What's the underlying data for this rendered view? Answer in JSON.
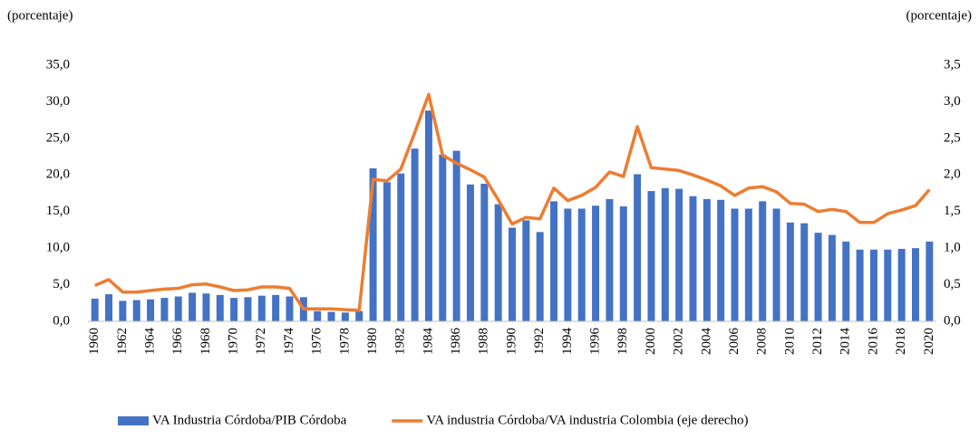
{
  "chart_data": {
    "type": "bar_line",
    "y_label": "(porcentaje)",
    "y2_label": "(porcentaje)",
    "categories": [
      "1960",
      null,
      "1962",
      null,
      "1964",
      null,
      "1966",
      null,
      "1968",
      null,
      "1970",
      null,
      "1972",
      null,
      "1974",
      null,
      "1976",
      null,
      "1978",
      null,
      "1980",
      null,
      "1982",
      null,
      "1984",
      null,
      "1986",
      null,
      "1988",
      null,
      "1990",
      null,
      "1992",
      null,
      "1994",
      null,
      "1996",
      null,
      "1998",
      null,
      "2000",
      null,
      "2002",
      null,
      "2004",
      null,
      "2006",
      null,
      "2008",
      null,
      "2010",
      null,
      "2012",
      null,
      "2014",
      null,
      "2016",
      null,
      "2018",
      null,
      "2020"
    ],
    "series": [
      {
        "name": "VA Industria Córdoba/PIB Córdoba",
        "type": "bar",
        "color": "#4472c4",
        "values": [
          3.1,
          3.7,
          2.8,
          2.9,
          3.0,
          3.2,
          3.4,
          3.9,
          3.8,
          3.6,
          3.2,
          3.3,
          3.5,
          3.6,
          3.4,
          3.3,
          1.4,
          1.3,
          1.2,
          1.4,
          20.9,
          19.0,
          20.2,
          23.6,
          28.8,
          22.8,
          23.3,
          18.7,
          18.8,
          16.0,
          12.8,
          13.8,
          12.2,
          16.4,
          15.4,
          15.4,
          15.8,
          16.7,
          15.7,
          20.1,
          17.8,
          18.2,
          18.1,
          17.1,
          16.7,
          16.6,
          15.4,
          15.4,
          16.4,
          15.4,
          13.5,
          13.4,
          12.1,
          11.8,
          10.9,
          9.8,
          9.8,
          9.8,
          9.9,
          10.0,
          10.9
        ]
      },
      {
        "name": "VA industria Córdoba/VA industria Colombia (eje derecho)",
        "type": "line",
        "axis": "y2",
        "color": "#ed7d31",
        "values": [
          0.49,
          0.57,
          0.4,
          0.4,
          0.42,
          0.44,
          0.45,
          0.5,
          0.51,
          0.47,
          0.42,
          0.43,
          0.47,
          0.47,
          0.45,
          0.17,
          0.17,
          0.17,
          0.16,
          0.15,
          1.94,
          1.92,
          2.08,
          2.58,
          3.1,
          2.27,
          2.16,
          2.07,
          1.97,
          1.66,
          1.33,
          1.42,
          1.4,
          1.82,
          1.65,
          1.72,
          1.83,
          2.04,
          1.98,
          2.66,
          2.1,
          2.08,
          2.06,
          2.0,
          1.93,
          1.85,
          1.72,
          1.82,
          1.84,
          1.77,
          1.61,
          1.6,
          1.5,
          1.53,
          1.5,
          1.35,
          1.35,
          1.47,
          1.52,
          1.58,
          1.8
        ]
      }
    ],
    "ylim": [
      0,
      35
    ],
    "yticks": [
      {
        "value": 0,
        "label": "0,0"
      },
      {
        "value": 5,
        "label": "5,0"
      },
      {
        "value": 10,
        "label": "10,0"
      },
      {
        "value": 15,
        "label": "15,0"
      },
      {
        "value": 20,
        "label": "20,0"
      },
      {
        "value": 25,
        "label": "25,0"
      },
      {
        "value": 30,
        "label": "30,0"
      },
      {
        "value": 35,
        "label": "35,0"
      }
    ],
    "y2lim": [
      0,
      3.5
    ],
    "y2ticks": [
      {
        "value": 0,
        "label": "0,0"
      },
      {
        "value": 0.5,
        "label": "0,5"
      },
      {
        "value": 1,
        "label": "1,0"
      },
      {
        "value": 1.5,
        "label": "1,5"
      },
      {
        "value": 2,
        "label": "2,0"
      },
      {
        "value": 2.5,
        "label": "2,5"
      },
      {
        "value": 3,
        "label": "3,0"
      },
      {
        "value": 3.5,
        "label": "3,5"
      }
    ],
    "grid": false,
    "legend": "bottom"
  }
}
